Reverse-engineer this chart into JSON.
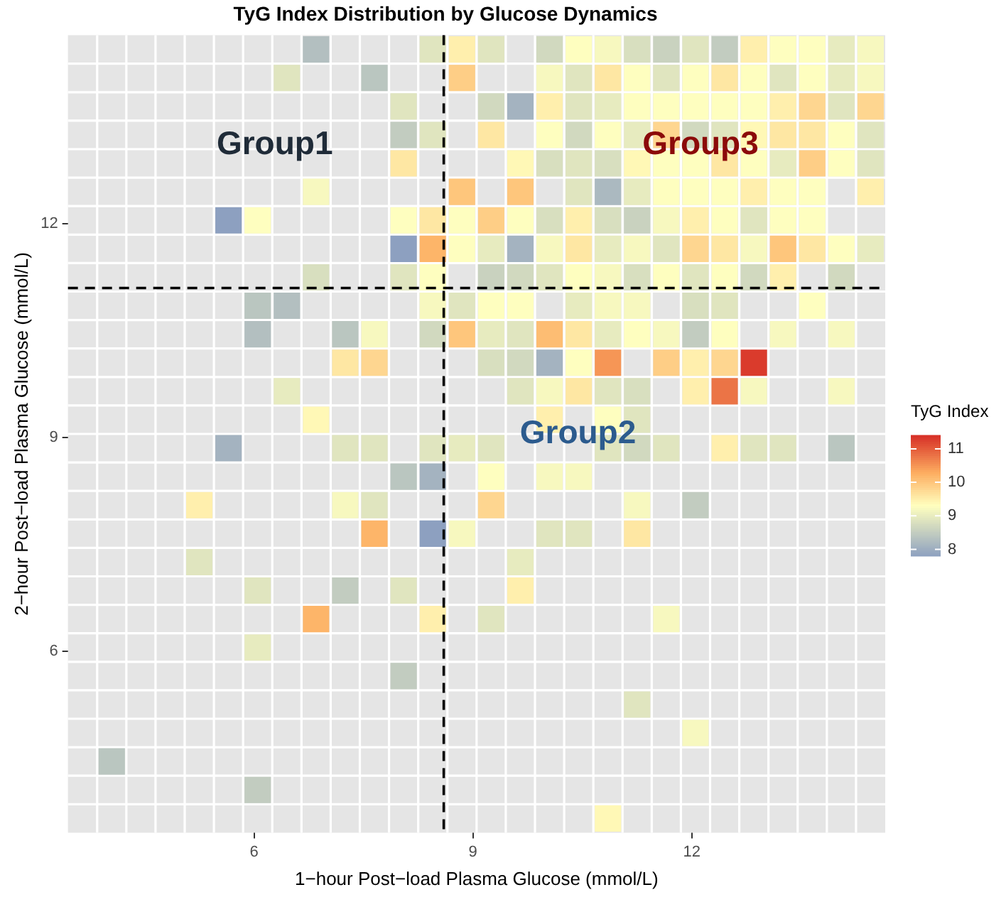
{
  "chart_data": {
    "type": "scatter",
    "marker": "square",
    "title": "TyG Index Distribution by Glucose Dynamics",
    "xlabel": "1−hour Post−load Plasma Glucose (mmol/L)",
    "ylabel": "2−hour Post−load Plasma Glucose (mmol/L)",
    "clabel": "TyG Index",
    "xlim": [
      3.45,
      14.65
    ],
    "ylim": [
      3.45,
      14.65
    ],
    "xticks": [
      6,
      9,
      12
    ],
    "yticks": [
      6,
      9,
      12
    ],
    "clim": [
      7.8,
      11.4
    ],
    "cticks": [
      8,
      9,
      10,
      11
    ],
    "x": [
      6.85,
      8.45,
      8.85,
      9.25,
      10.05,
      10.45,
      10.85,
      11.25,
      11.65,
      12.05,
      12.45,
      12.85,
      13.25,
      13.65,
      14.05,
      14.45,
      6.45,
      7.65,
      8.85,
      10.05,
      10.45,
      10.85,
      11.25,
      11.65,
      12.05,
      12.45,
      12.85,
      13.25,
      13.65,
      14.05,
      14.45,
      8.05,
      9.25,
      9.65,
      10.05,
      10.45,
      10.85,
      11.25,
      11.65,
      12.05,
      12.45,
      12.85,
      13.25,
      13.65,
      14.05,
      14.45,
      8.05,
      8.45,
      9.25,
      10.05,
      10.45,
      10.85,
      11.25,
      11.65,
      12.05,
      12.45,
      12.85,
      13.25,
      13.65,
      14.05,
      14.45,
      8.05,
      9.65,
      10.05,
      10.45,
      10.85,
      11.25,
      11.65,
      12.05,
      12.45,
      12.85,
      13.25,
      13.65,
      14.05,
      14.45,
      6.85,
      8.85,
      9.65,
      10.45,
      10.85,
      11.25,
      11.65,
      12.05,
      12.45,
      12.85,
      13.25,
      13.65,
      14.45,
      5.65,
      6.05,
      8.05,
      8.45,
      8.85,
      9.25,
      9.65,
      10.05,
      10.45,
      10.85,
      11.25,
      11.65,
      12.05,
      12.45,
      12.85,
      13.25,
      13.65,
      8.05,
      8.45,
      8.85,
      9.25,
      9.65,
      10.05,
      10.45,
      10.85,
      11.25,
      11.65,
      12.05,
      12.45,
      12.85,
      13.25,
      13.65,
      14.05,
      14.45,
      6.85,
      8.05,
      8.45,
      9.25,
      9.65,
      10.05,
      10.45,
      10.85,
      11.25,
      11.65,
      12.05,
      12.45,
      12.85,
      13.25,
      14.05,
      6.05,
      6.45,
      8.45,
      8.85,
      9.25,
      9.65,
      10.45,
      10.85,
      11.25,
      12.05,
      12.45,
      13.65,
      6.05,
      7.25,
      7.65,
      8.45,
      8.85,
      9.25,
      9.65,
      10.05,
      10.45,
      10.85,
      11.25,
      11.65,
      12.05,
      12.45,
      13.25,
      14.05,
      7.25,
      7.65,
      9.25,
      9.65,
      10.05,
      10.45,
      10.85,
      11.65,
      12.05,
      12.45,
      12.85,
      6.45,
      9.65,
      10.05,
      10.45,
      10.85,
      11.25,
      12.05,
      12.45,
      12.85,
      14.05,
      6.85,
      10.05,
      10.85,
      11.25,
      5.65,
      7.25,
      7.65,
      8.45,
      8.85,
      9.25,
      10.85,
      11.25,
      11.65,
      12.45,
      12.85,
      13.25,
      14.05,
      8.05,
      8.45,
      9.25,
      10.05,
      10.45,
      5.25,
      7.25,
      7.65,
      9.25,
      11.25,
      12.05,
      7.65,
      8.45,
      8.85,
      10.05,
      10.45,
      11.25,
      5.25,
      9.65,
      6.05,
      7.25,
      8.05,
      9.65,
      6.85,
      8.45,
      9.25,
      11.65,
      6.05,
      8.05,
      11.25,
      12.05,
      4.05,
      6.05,
      10.85
    ],
    "values": [
      14.45,
      14.45,
      14.45,
      14.45,
      14.45,
      14.45,
      14.45,
      14.45,
      14.45,
      14.45,
      14.45,
      14.45,
      14.45,
      14.45,
      14.45,
      14.45,
      14.05,
      14.05,
      14.05,
      14.05,
      14.05,
      14.05,
      14.05,
      14.05,
      14.05,
      14.05,
      14.05,
      14.05,
      14.05,
      14.05,
      14.05,
      13.65,
      13.65,
      13.65,
      13.65,
      13.65,
      13.65,
      13.65,
      13.65,
      13.65,
      13.65,
      13.65,
      13.65,
      13.65,
      13.65,
      13.65,
      13.25,
      13.25,
      13.25,
      13.25,
      13.25,
      13.25,
      13.25,
      13.25,
      13.25,
      13.25,
      13.25,
      13.25,
      13.25,
      13.25,
      13.25,
      12.85,
      12.85,
      12.85,
      12.85,
      12.85,
      12.85,
      12.85,
      12.85,
      12.85,
      12.85,
      12.85,
      12.85,
      12.85,
      12.85,
      12.45,
      12.45,
      12.45,
      12.45,
      12.45,
      12.45,
      12.45,
      12.45,
      12.45,
      12.45,
      12.45,
      12.45,
      12.45,
      12.05,
      12.05,
      12.05,
      12.05,
      12.05,
      12.05,
      12.05,
      12.05,
      12.05,
      12.05,
      12.05,
      12.05,
      12.05,
      12.05,
      12.05,
      12.05,
      12.05,
      11.65,
      11.65,
      11.65,
      11.65,
      11.65,
      11.65,
      11.65,
      11.65,
      11.65,
      11.65,
      11.65,
      11.65,
      11.65,
      11.65,
      11.65,
      11.65,
      11.65,
      11.25,
      11.25,
      11.25,
      11.25,
      11.25,
      11.25,
      11.25,
      11.25,
      11.25,
      11.25,
      11.25,
      11.25,
      11.25,
      11.25,
      11.25,
      10.85,
      10.85,
      10.85,
      10.85,
      10.85,
      10.85,
      10.85,
      10.85,
      10.85,
      10.85,
      10.85,
      10.85,
      10.45,
      10.45,
      10.45,
      10.45,
      10.45,
      10.45,
      10.45,
      10.45,
      10.45,
      10.45,
      10.45,
      10.45,
      10.45,
      10.45,
      10.45,
      10.45,
      10.05,
      10.05,
      10.05,
      10.05,
      10.05,
      10.05,
      10.05,
      10.05,
      10.05,
      10.05,
      10.05,
      9.65,
      9.65,
      9.65,
      9.65,
      9.65,
      9.65,
      9.65,
      9.65,
      9.65,
      9.65,
      9.25,
      9.25,
      9.25,
      9.25,
      8.85,
      8.85,
      8.85,
      8.85,
      8.85,
      8.85,
      8.85,
      8.85,
      8.85,
      8.85,
      8.85,
      8.85,
      8.85,
      8.45,
      8.45,
      8.45,
      8.45,
      8.45,
      8.05,
      8.05,
      8.05,
      8.05,
      8.05,
      8.05,
      7.65,
      7.65,
      7.65,
      7.65,
      7.65,
      7.65,
      7.25,
      7.25,
      6.85,
      6.85,
      6.85,
      6.85,
      6.45,
      6.45,
      6.45,
      6.45,
      6.05,
      5.65,
      5.25,
      4.85,
      4.45,
      4.05,
      3.65
    ],
    "cvalues": [
      8.3,
      8.9,
      9.5,
      8.9,
      8.7,
      9.3,
      9.2,
      8.8,
      8.6,
      8.9,
      8.5,
      9.5,
      9.3,
      9.3,
      9.0,
      9.2,
      8.9,
      8.4,
      9.9,
      9.2,
      8.9,
      9.6,
      9.3,
      8.9,
      9.3,
      9.6,
      9.3,
      8.9,
      9.3,
      9.0,
      9.2,
      8.9,
      8.7,
      8.1,
      9.5,
      8.9,
      9.0,
      9.3,
      9.3,
      9.3,
      9.3,
      9.3,
      9.5,
      9.8,
      8.9,
      9.8,
      8.5,
      8.9,
      9.6,
      9.3,
      8.7,
      9.3,
      9.0,
      9.8,
      8.7,
      8.9,
      9.4,
      9.6,
      9.6,
      9.3,
      8.9,
      9.6,
      9.4,
      8.8,
      8.9,
      8.8,
      9.4,
      9.3,
      9.3,
      9.6,
      9.3,
      9.0,
      9.9,
      9.3,
      8.9,
      9.2,
      10.0,
      10.0,
      8.9,
      8.2,
      9.0,
      9.3,
      9.3,
      9.3,
      9.5,
      9.3,
      9.3,
      9.5,
      7.8,
      9.3,
      9.3,
      9.6,
      9.3,
      9.9,
      9.3,
      8.8,
      9.5,
      8.8,
      8.6,
      9.2,
      9.5,
      9.3,
      8.9,
      9.3,
      9.3,
      7.8,
      10.2,
      9.3,
      9.0,
      8.1,
      9.2,
      9.6,
      9.0,
      9.2,
      8.9,
      9.8,
      9.6,
      9.2,
      10.0,
      9.6,
      9.3,
      9.0,
      8.8,
      8.9,
      9.3,
      8.6,
      8.7,
      8.9,
      9.3,
      9.2,
      8.8,
      9.3,
      8.9,
      9.3,
      8.7,
      9.5,
      8.7,
      8.4,
      8.3,
      9.2,
      8.9,
      9.3,
      9.3,
      9.0,
      9.2,
      9.2,
      8.8,
      8.9,
      9.3,
      8.3,
      8.4,
      9.2,
      8.7,
      10.0,
      9.0,
      8.9,
      10.1,
      9.6,
      9.0,
      9.3,
      9.2,
      8.5,
      9.3,
      9.2,
      9.2,
      9.6,
      9.8,
      8.8,
      8.7,
      8.1,
      9.3,
      10.5,
      9.9,
      9.5,
      9.8,
      11.3,
      9.0,
      8.9,
      9.2,
      9.6,
      8.9,
      8.8,
      9.5,
      10.8,
      9.2,
      9.2,
      9.4,
      9.5,
      9.3,
      8.9,
      8.1,
      8.9,
      8.9,
      8.9,
      9.0,
      8.9,
      8.9,
      8.7,
      8.9,
      9.5,
      8.9,
      8.9,
      8.4,
      8.4,
      8.1,
      9.3,
      9.2,
      9.2,
      9.5,
      9.2,
      8.9,
      9.8,
      9.2,
      8.5,
      10.2,
      7.8,
      9.2,
      8.9,
      8.9,
      9.6,
      8.9,
      9.0,
      8.9,
      8.5,
      8.9,
      9.5,
      10.2,
      9.5,
      8.9,
      9.2,
      9.0,
      8.5,
      8.9,
      9.2,
      8.4,
      8.5,
      9.4
    ],
    "ref_lines": [
      {
        "axis": "x",
        "value": 8.6,
        "label": null,
        "color": "#000000",
        "line_style": "dashed"
      },
      {
        "axis": "y",
        "value": 11.1,
        "label": null,
        "color": "#000000",
        "line_style": "dashed"
      }
    ],
    "annotations": [
      "Group1",
      "Group2",
      "Group3"
    ]
  }
}
